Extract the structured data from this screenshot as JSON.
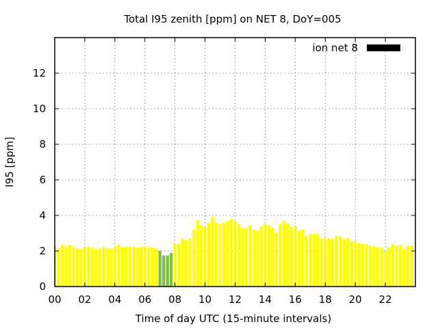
{
  "chart_data": {
    "type": "bar",
    "title": "Total I95 zenith [ppm] on NET 8, DoY=005",
    "xlabel": "Time of day UTC (15-minute intervals)",
    "ylabel": "I95 [ppm]",
    "xlim": [
      0,
      24
    ],
    "ylim": [
      0,
      14
    ],
    "grid": true,
    "legend_position": "top-right",
    "x_ticks": [
      "00",
      "02",
      "04",
      "06",
      "08",
      "10",
      "12",
      "14",
      "16",
      "18",
      "20",
      "22"
    ],
    "y_ticks": [
      "0",
      "2",
      "4",
      "6",
      "8",
      "10",
      "12"
    ],
    "x_interval_hours": 0.25,
    "colors": {
      "normal": "#ffff00",
      "low": "#80c040",
      "legend": "#000000"
    },
    "series": [
      {
        "name": "ion net 8",
        "values": [
          2.25,
          2.15,
          2.35,
          2.25,
          2.35,
          2.25,
          2.15,
          2.1,
          2.2,
          2.25,
          2.2,
          2.1,
          2.15,
          2.2,
          2.15,
          2.15,
          2.25,
          2.35,
          2.2,
          2.25,
          2.25,
          2.25,
          2.2,
          2.25,
          2.25,
          2.25,
          2.2,
          2.15,
          2.0,
          1.75,
          1.75,
          1.9,
          2.4,
          2.4,
          2.7,
          2.6,
          2.7,
          3.2,
          3.75,
          3.45,
          3.35,
          3.6,
          3.9,
          3.6,
          3.5,
          3.6,
          3.7,
          3.8,
          3.7,
          3.5,
          3.3,
          3.3,
          3.45,
          3.2,
          3.15,
          3.4,
          3.5,
          3.45,
          3.3,
          3.05,
          3.5,
          3.7,
          3.55,
          3.35,
          3.35,
          3.15,
          3.2,
          2.85,
          2.95,
          2.95,
          2.95,
          2.7,
          2.75,
          2.7,
          2.7,
          2.85,
          2.8,
          2.65,
          2.75,
          2.55,
          2.55,
          2.45,
          2.4,
          2.4,
          2.3,
          2.25,
          2.2,
          2.2,
          2.0,
          2.2,
          2.4,
          2.3,
          2.35,
          2.15,
          2.3,
          2.3
        ],
        "low_flags": [
          28,
          29,
          30,
          31
        ]
      }
    ]
  }
}
